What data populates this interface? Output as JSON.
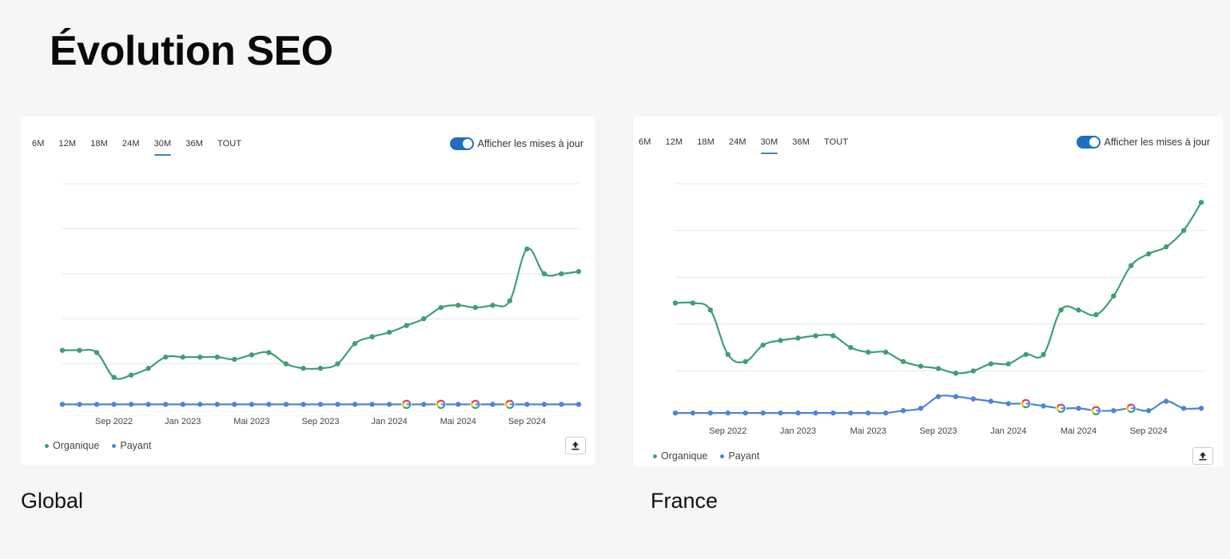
{
  "page": {
    "title": "Évolution SEO"
  },
  "colors": {
    "organic": "#3e9f72",
    "paid": "#4b85d6",
    "accent": "#3d84c6",
    "grid": "#e4e6ea"
  },
  "tabs": [
    "6M",
    "12M",
    "18M",
    "24M",
    "30M",
    "36M",
    "TOUT"
  ],
  "active_tab": "30M",
  "toggle_label": "Afficher les mises à jour",
  "legend": {
    "organic": "Organique",
    "paid": "Payant"
  },
  "icons": {
    "export": "upload-icon",
    "update": "google-g-icon"
  },
  "captions": {
    "global": "Global",
    "france": "France"
  },
  "chart_data": [
    {
      "type": "line",
      "title": "",
      "xlabel": "",
      "ylabel": "",
      "ylim": [
        0,
        100
      ],
      "x_ticks": [
        "Sep 2022",
        "Jan 2023",
        "Mai 2023",
        "Sep 2023",
        "Jan 2024",
        "Mai 2024",
        "Sep 2024"
      ],
      "x_tick_positions": [
        3,
        7,
        11,
        15,
        19,
        23,
        27
      ],
      "gridlines": 5,
      "grid": true,
      "legend_position": "bottom-left",
      "series": [
        {
          "name": "Organique",
          "values": [
            26,
            26,
            25,
            14,
            15,
            18,
            23,
            23,
            23,
            23,
            22,
            24,
            25,
            20,
            18,
            18,
            20,
            29,
            32,
            34,
            37,
            40,
            45,
            46,
            45,
            46,
            48,
            71,
            60,
            60,
            61
          ]
        },
        {
          "name": "Payant",
          "values": [
            2,
            2,
            2,
            2,
            2,
            2,
            2,
            2,
            2,
            2,
            2,
            2,
            2,
            2,
            2,
            2,
            2,
            2,
            2,
            2,
            2,
            2,
            2,
            2,
            2,
            2,
            2,
            2,
            2,
            2,
            2
          ]
        }
      ],
      "update_markers": [
        20,
        22,
        24,
        26
      ]
    },
    {
      "type": "line",
      "title": "",
      "xlabel": "",
      "ylabel": "",
      "ylim": [
        0,
        100
      ],
      "x_ticks": [
        "Sep 2022",
        "Jan 2023",
        "Mai 2023",
        "Sep 2023",
        "Jan 2024",
        "Mai 2024",
        "Sep 2024"
      ],
      "x_tick_positions": [
        3,
        7,
        11,
        15,
        19,
        23,
        27
      ],
      "gridlines": 5,
      "grid": true,
      "legend_position": "bottom-left",
      "series": [
        {
          "name": "Organique",
          "values": [
            49,
            49,
            46,
            27,
            24,
            31,
            33,
            34,
            35,
            35,
            30,
            28,
            28,
            24,
            22,
            21,
            19,
            20,
            23,
            23,
            27,
            27,
            46,
            46,
            44,
            52,
            65,
            70,
            73,
            80,
            92
          ]
        },
        {
          "name": "Payant",
          "values": [
            2,
            2,
            2,
            2,
            2,
            2,
            2,
            2,
            2,
            2,
            2,
            2,
            2,
            3,
            4,
            9,
            9,
            8,
            7,
            6,
            6,
            5,
            4,
            4,
            3,
            3,
            4,
            3,
            7,
            4,
            4
          ]
        }
      ],
      "update_markers": [
        20,
        22,
        24,
        26
      ]
    }
  ]
}
